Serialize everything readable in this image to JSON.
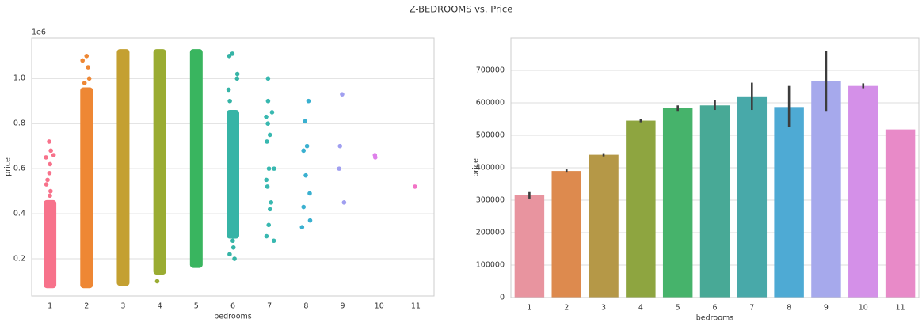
{
  "title": "Z-BEDROOMS vs. Price",
  "chart_data": [
    {
      "type": "strip",
      "x_label": "bedrooms",
      "y_label": "price",
      "offset_label": "1e6",
      "categories": [
        "1",
        "2",
        "3",
        "4",
        "5",
        "6",
        "7",
        "8",
        "9",
        "10",
        "11"
      ],
      "colors": [
        "#f7728b",
        "#ee8734",
        "#c4a031",
        "#9aac32",
        "#39b55f",
        "#36b4a6",
        "#38b8b0",
        "#3ab0d0",
        "#a09ff0",
        "#de80ea",
        "#f273c6"
      ],
      "ranges": [
        [
          0.08,
          0.45
        ],
        [
          0.08,
          0.95
        ],
        [
          0.09,
          1.12
        ],
        [
          0.14,
          1.12
        ],
        [
          0.17,
          1.12
        ],
        [
          0.3,
          0.85
        ],
        null,
        null,
        null,
        null,
        null
      ],
      "points": [
        [
          0.48,
          0.5,
          0.53,
          0.55,
          0.58,
          0.62,
          0.65,
          0.66,
          0.68,
          0.72
        ],
        [
          0.98,
          1.0,
          1.05,
          1.08,
          1.1
        ],
        [],
        [
          0.1
        ],
        [],
        [
          0.2,
          0.22,
          0.25,
          0.28,
          0.9,
          0.95,
          1.0,
          1.02,
          1.1,
          1.11
        ],
        [
          0.28,
          0.3,
          0.35,
          0.42,
          0.45,
          0.52,
          0.55,
          0.6,
          0.6,
          0.72,
          0.75,
          0.8,
          0.83,
          0.85,
          0.9,
          1.0
        ],
        [
          0.34,
          0.37,
          0.43,
          0.49,
          0.57,
          0.68,
          0.7,
          0.81,
          0.9
        ],
        [
          0.45,
          0.6,
          0.7,
          0.93
        ],
        [
          0.65,
          0.66
        ],
        [
          0.52
        ]
      ],
      "ylim": [
        0.035,
        1.18
      ],
      "yticks": [
        0.2,
        0.4,
        0.6,
        0.8,
        {
          "value": 1,
          "label": "1.0"
        }
      ],
      "grid": true
    },
    {
      "type": "bar",
      "x_label": "bedrooms",
      "y_label": "price",
      "categories": [
        "1",
        "2",
        "3",
        "4",
        "5",
        "6",
        "7",
        "8",
        "9",
        "10",
        "11"
      ],
      "colors": [
        "#e8949f",
        "#dd8a4e",
        "#b59847",
        "#8ea540",
        "#46b36b",
        "#48a996",
        "#48a9a9",
        "#4eaad4",
        "#a6a9ec",
        "#d490e8",
        "#e88ac8"
      ],
      "values": [
        315000,
        390000,
        440000,
        545000,
        583000,
        592000,
        620000,
        587000,
        668000,
        652000,
        518000
      ],
      "ci": [
        [
          305000,
          325000
        ],
        [
          385000,
          395000
        ],
        [
          435000,
          445000
        ],
        [
          540000,
          550000
        ],
        [
          575000,
          592000
        ],
        [
          578000,
          608000
        ],
        [
          578000,
          662000
        ],
        [
          525000,
          652000
        ],
        [
          575000,
          760000
        ],
        [
          645000,
          660000
        ],
        null
      ],
      "ylim": [
        0,
        800000
      ],
      "yticks": [
        0,
        100000,
        200000,
        300000,
        400000,
        500000,
        600000,
        700000
      ],
      "grid": true
    }
  ]
}
